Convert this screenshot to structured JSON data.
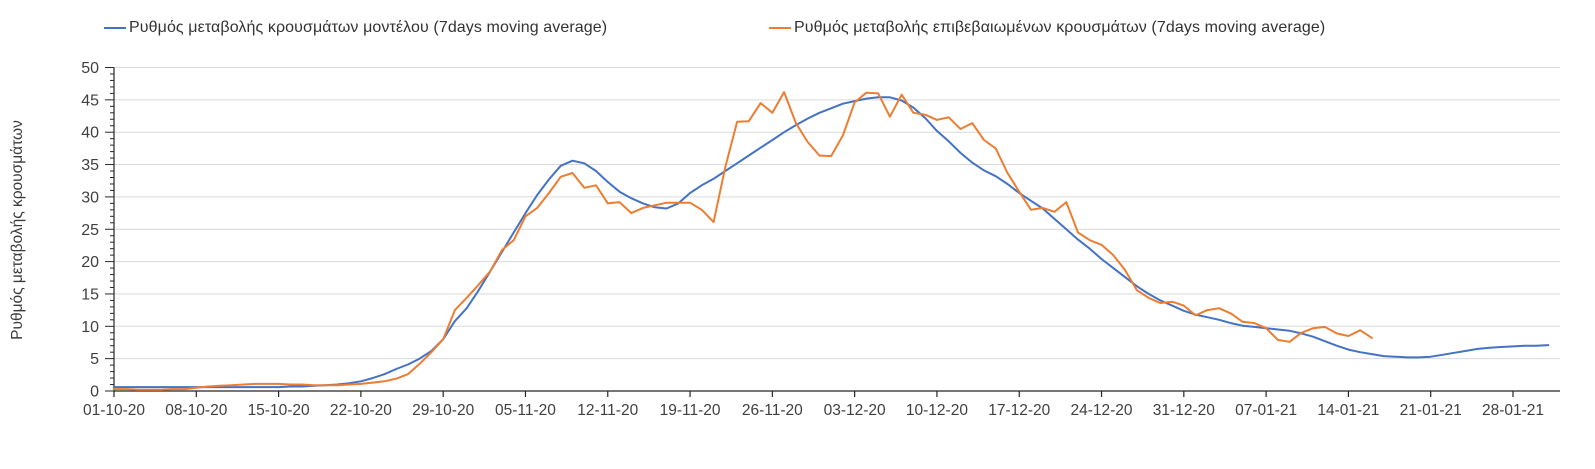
{
  "chart_data": {
    "type": "line",
    "title": "",
    "xlabel": "",
    "ylabel": "Ρυθμός μεταβολής κρουσμάτων",
    "ylim": [
      0,
      50
    ],
    "y_ticks": [
      0,
      5,
      10,
      15,
      20,
      25,
      30,
      35,
      40,
      45,
      50
    ],
    "grid": true,
    "grid_color": "#d9d9d9",
    "axis_color": "#262626",
    "text_color": "#404040",
    "legend_position": "top",
    "x_start_date": "01-10-20",
    "x_step_days": 1,
    "x_tick_every_days": 7,
    "x_tick_labels": [
      "01-10-20",
      "08-10-20",
      "15-10-20",
      "22-10-20",
      "29-10-20",
      "05-11-20",
      "12-11-20",
      "19-11-20",
      "26-11-20",
      "03-12-20",
      "10-12-20",
      "17-12-20",
      "24-12-20",
      "31-12-20",
      "07-01-21",
      "14-01-21",
      "21-01-21",
      "28-01-21"
    ],
    "series": [
      {
        "name": "Ρυθμός μεταβολής κρουσμάτων μοντέλου (7days moving average)",
        "color": "#4472c4",
        "values": [
          0.6,
          0.6,
          0.6,
          0.6,
          0.6,
          0.6,
          0.6,
          0.6,
          0.6,
          0.6,
          0.6,
          0.6,
          0.6,
          0.6,
          0.6,
          0.7,
          0.7,
          0.8,
          0.9,
          1.0,
          1.2,
          1.5,
          2.0,
          2.6,
          3.4,
          4.1,
          5.0,
          6.2,
          8.0,
          10.8,
          12.8,
          15.5,
          18.5,
          21.5,
          24.5,
          27.5,
          30.3,
          32.7,
          34.8,
          35.6,
          35.2,
          34.0,
          32.3,
          30.8,
          29.8,
          29.0,
          28.4,
          28.2,
          29.0,
          30.6,
          31.8,
          32.8,
          34.0,
          35.2,
          36.4,
          37.6,
          38.8,
          40.0,
          41.1,
          42.1,
          43.0,
          43.7,
          44.4,
          44.8,
          45.2,
          45.4,
          45.4,
          44.9,
          43.8,
          42.2,
          40.2,
          38.6,
          36.8,
          35.3,
          34.1,
          33.2,
          32.0,
          30.6,
          29.4,
          28.2,
          26.6,
          25.0,
          23.4,
          22.0,
          20.4,
          19.0,
          17.6,
          16.2,
          15.0,
          14.0,
          13.2,
          12.4,
          11.8,
          11.4,
          11.0,
          10.5,
          10.1,
          9.9,
          9.7,
          9.5,
          9.3,
          8.9,
          8.4,
          7.7,
          7.0,
          6.4,
          6.0,
          5.7,
          5.4,
          5.3,
          5.2,
          5.2,
          5.3,
          5.6,
          5.9,
          6.2,
          6.5,
          6.7,
          6.8,
          6.9,
          7.0,
          7.0,
          7.1
        ]
      },
      {
        "name": "Ρυθμός μεταβολής επιβεβαιωμένων κρουσμάτων (7days moving average)",
        "color": "#ed7d31",
        "values": [
          0.3,
          0.3,
          0.2,
          0.2,
          0.2,
          0.3,
          0.3,
          0.5,
          0.7,
          0.8,
          0.9,
          1.0,
          1.1,
          1.1,
          1.1,
          1.0,
          1.0,
          0.9,
          0.9,
          0.9,
          1.0,
          1.1,
          1.3,
          1.5,
          1.9,
          2.6,
          4.2,
          6.0,
          8.0,
          12.5,
          14.4,
          16.4,
          18.5,
          21.8,
          23.3,
          27.0,
          28.3,
          30.6,
          33.1,
          33.7,
          31.4,
          31.8,
          29.0,
          29.2,
          27.5,
          28.3,
          28.7,
          29.1,
          29.1,
          29.1,
          28.0,
          26.1,
          34.6,
          41.6,
          41.7,
          44.5,
          43.0,
          46.2,
          41.4,
          38.5,
          36.4,
          36.3,
          39.5,
          44.6,
          46.1,
          46.0,
          42.4,
          45.8,
          43.0,
          42.7,
          41.9,
          42.3,
          40.5,
          41.4,
          38.8,
          37.5,
          33.7,
          30.8,
          28.0,
          28.3,
          27.7,
          29.2,
          24.5,
          23.3,
          22.6,
          21.0,
          18.7,
          15.6,
          14.4,
          13.6,
          13.8,
          13.2,
          11.7,
          12.5,
          12.8,
          12.0,
          10.7,
          10.5,
          9.7,
          7.9,
          7.6,
          9.0,
          9.7,
          9.9,
          8.9,
          8.5,
          9.4,
          8.2,
          null,
          null,
          null,
          null,
          null,
          null,
          null,
          null,
          null,
          null,
          null,
          null,
          null,
          null,
          null
        ]
      }
    ]
  }
}
